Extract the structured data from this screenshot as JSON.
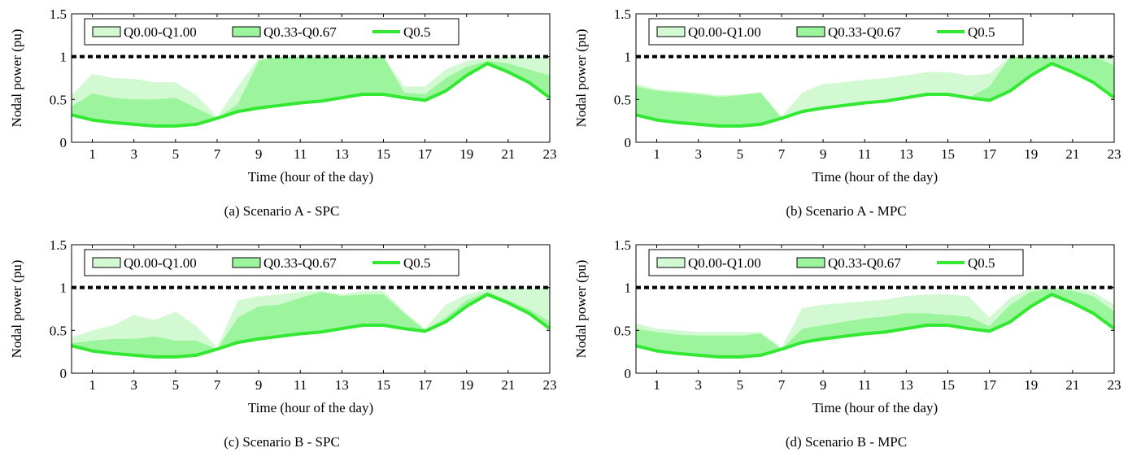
{
  "figure": {
    "legend": {
      "outer": "Q0.00-Q1.00",
      "inner": "Q0.33-Q0.67",
      "median": "Q0.5"
    },
    "colors": {
      "outer": "#d2f9d2",
      "inner": "#9cf59c",
      "median": "#33e833",
      "limit": "#000000",
      "grid_text": "#000000"
    }
  },
  "chart_data": [
    {
      "id": "a",
      "type": "area",
      "caption": "(a) Scenario A - SPC",
      "xlabel": "Time (hour of the day)",
      "ylabel": "Nodal power (pu)",
      "xlim": [
        0,
        23
      ],
      "ylim": [
        0,
        1.5
      ],
      "xticks": [
        1,
        3,
        5,
        7,
        9,
        11,
        13,
        15,
        17,
        19,
        21,
        23
      ],
      "yticks": [
        0,
        0.5,
        1,
        1.5
      ],
      "ytick_labels": [
        "0",
        "0.5",
        "1",
        "1.5"
      ],
      "limit_line": 1.0,
      "legend_position": "top-left",
      "grid": false,
      "x": [
        0,
        1,
        2,
        3,
        4,
        5,
        6,
        7,
        8,
        9,
        10,
        11,
        12,
        13,
        14,
        15,
        16,
        17,
        18,
        19,
        20,
        21,
        22,
        23
      ],
      "series": [
        {
          "name": "Q0.00-Q1.00",
          "lower": [
            0.32,
            0.26,
            0.23,
            0.21,
            0.19,
            0.19,
            0.21,
            0.28,
            0.36,
            0.4,
            0.43,
            0.46,
            0.48,
            0.52,
            0.56,
            0.56,
            0.52,
            0.49,
            0.6,
            0.78,
            0.92,
            0.82,
            0.7,
            0.52
          ],
          "upper": [
            0.55,
            0.8,
            0.75,
            0.74,
            0.7,
            0.7,
            0.55,
            0.3,
            0.65,
            0.98,
            1.0,
            1.0,
            1.0,
            1.0,
            1.0,
            1.0,
            0.65,
            0.65,
            0.85,
            0.95,
            0.98,
            1.0,
            1.0,
            1.0
          ]
        },
        {
          "name": "Q0.33-Q0.67",
          "lower": [
            0.32,
            0.26,
            0.23,
            0.21,
            0.19,
            0.19,
            0.21,
            0.28,
            0.36,
            0.4,
            0.43,
            0.46,
            0.48,
            0.52,
            0.56,
            0.56,
            0.52,
            0.49,
            0.6,
            0.78,
            0.92,
            0.82,
            0.7,
            0.52
          ],
          "upper": [
            0.42,
            0.57,
            0.52,
            0.5,
            0.5,
            0.52,
            0.4,
            0.28,
            0.45,
            0.95,
            1.0,
            1.0,
            1.0,
            1.0,
            1.0,
            1.0,
            0.58,
            0.56,
            0.75,
            0.88,
            0.95,
            0.92,
            0.85,
            0.78
          ]
        },
        {
          "name": "Q0.5",
          "values": [
            0.32,
            0.26,
            0.23,
            0.21,
            0.19,
            0.19,
            0.21,
            0.28,
            0.36,
            0.4,
            0.43,
            0.46,
            0.48,
            0.52,
            0.56,
            0.56,
            0.52,
            0.49,
            0.6,
            0.78,
            0.92,
            0.82,
            0.7,
            0.52
          ]
        }
      ]
    },
    {
      "id": "b",
      "type": "area",
      "caption": "(b) Scenario A - MPC",
      "xlabel": "Time (hour of the day)",
      "ylabel": "Nodal power (pu)",
      "xlim": [
        0,
        23
      ],
      "ylim": [
        0,
        1.5
      ],
      "xticks": [
        1,
        3,
        5,
        7,
        9,
        11,
        13,
        15,
        17,
        19,
        21,
        23
      ],
      "yticks": [
        0,
        0.5,
        1,
        1.5
      ],
      "ytick_labels": [
        "0",
        "0.5",
        "1",
        "1.5"
      ],
      "limit_line": 1.0,
      "legend_position": "top-left",
      "grid": false,
      "x": [
        0,
        1,
        2,
        3,
        4,
        5,
        6,
        7,
        8,
        9,
        10,
        11,
        12,
        13,
        14,
        15,
        16,
        17,
        18,
        19,
        20,
        21,
        22,
        23
      ],
      "series": [
        {
          "name": "Q0.00-Q1.00",
          "lower": [
            0.32,
            0.26,
            0.23,
            0.21,
            0.19,
            0.19,
            0.21,
            0.28,
            0.36,
            0.4,
            0.43,
            0.46,
            0.48,
            0.52,
            0.56,
            0.56,
            0.52,
            0.49,
            0.6,
            0.78,
            0.92,
            0.82,
            0.7,
            0.52
          ],
          "upper": [
            0.68,
            0.62,
            0.6,
            0.58,
            0.55,
            0.56,
            0.58,
            0.3,
            0.58,
            0.68,
            0.7,
            0.73,
            0.75,
            0.78,
            0.82,
            0.82,
            0.78,
            0.8,
            1.0,
            1.0,
            1.0,
            1.0,
            1.0,
            1.0
          ]
        },
        {
          "name": "Q0.33-Q0.67",
          "lower": [
            0.32,
            0.26,
            0.23,
            0.21,
            0.19,
            0.19,
            0.21,
            0.28,
            0.36,
            0.4,
            0.43,
            0.46,
            0.48,
            0.52,
            0.56,
            0.56,
            0.52,
            0.49,
            0.6,
            0.78,
            0.92,
            0.82,
            0.7,
            0.52
          ],
          "upper": [
            0.65,
            0.6,
            0.58,
            0.56,
            0.53,
            0.55,
            0.58,
            0.28,
            0.36,
            0.4,
            0.43,
            0.46,
            0.48,
            0.52,
            0.56,
            0.56,
            0.52,
            0.65,
            1.0,
            1.0,
            1.0,
            1.0,
            1.0,
            0.9
          ]
        },
        {
          "name": "Q0.5",
          "values": [
            0.32,
            0.26,
            0.23,
            0.21,
            0.19,
            0.19,
            0.21,
            0.28,
            0.36,
            0.4,
            0.43,
            0.46,
            0.48,
            0.52,
            0.56,
            0.56,
            0.52,
            0.49,
            0.6,
            0.78,
            0.92,
            0.82,
            0.7,
            0.52
          ]
        }
      ]
    },
    {
      "id": "c",
      "type": "area",
      "caption": "(c) Scenario B - SPC",
      "xlabel": "Time (hour of the day)",
      "ylabel": "Nodal power (pu)",
      "xlim": [
        0,
        23
      ],
      "ylim": [
        0,
        1.5
      ],
      "xticks": [
        1,
        3,
        5,
        7,
        9,
        11,
        13,
        15,
        17,
        19,
        21,
        23
      ],
      "yticks": [
        0,
        0.5,
        1,
        1.5
      ],
      "ytick_labels": [
        "0",
        "0.5",
        "1",
        "1.5"
      ],
      "limit_line": 1.0,
      "legend_position": "top-left",
      "grid": false,
      "x": [
        0,
        1,
        2,
        3,
        4,
        5,
        6,
        7,
        8,
        9,
        10,
        11,
        12,
        13,
        14,
        15,
        16,
        17,
        18,
        19,
        20,
        21,
        22,
        23
      ],
      "series": [
        {
          "name": "Q0.00-Q1.00",
          "lower": [
            0.32,
            0.26,
            0.23,
            0.21,
            0.19,
            0.19,
            0.21,
            0.28,
            0.36,
            0.4,
            0.43,
            0.46,
            0.48,
            0.52,
            0.56,
            0.56,
            0.52,
            0.49,
            0.6,
            0.78,
            0.92,
            0.82,
            0.7,
            0.52
          ],
          "upper": [
            0.42,
            0.5,
            0.56,
            0.68,
            0.62,
            0.72,
            0.55,
            0.3,
            0.85,
            0.9,
            0.92,
            0.95,
            0.96,
            0.92,
            0.96,
            0.96,
            0.72,
            0.52,
            0.8,
            0.92,
            0.98,
            1.0,
            1.0,
            1.0
          ]
        },
        {
          "name": "Q0.33-Q0.67",
          "lower": [
            0.32,
            0.26,
            0.23,
            0.21,
            0.19,
            0.19,
            0.21,
            0.28,
            0.36,
            0.4,
            0.43,
            0.46,
            0.48,
            0.52,
            0.56,
            0.56,
            0.52,
            0.49,
            0.6,
            0.78,
            0.92,
            0.82,
            0.7,
            0.52
          ],
          "upper": [
            0.35,
            0.38,
            0.4,
            0.4,
            0.43,
            0.38,
            0.38,
            0.28,
            0.65,
            0.78,
            0.8,
            0.88,
            0.95,
            0.9,
            0.92,
            0.92,
            0.7,
            0.5,
            0.65,
            0.85,
            0.95,
            0.85,
            0.75,
            0.6
          ]
        },
        {
          "name": "Q0.5",
          "values": [
            0.32,
            0.26,
            0.23,
            0.21,
            0.19,
            0.19,
            0.21,
            0.28,
            0.36,
            0.4,
            0.43,
            0.46,
            0.48,
            0.52,
            0.56,
            0.56,
            0.52,
            0.49,
            0.6,
            0.78,
            0.92,
            0.82,
            0.7,
            0.52
          ]
        }
      ]
    },
    {
      "id": "d",
      "type": "area",
      "caption": "(d) Scenario B - MPC",
      "xlabel": "Time (hour of the day)",
      "ylabel": "Nodal power (pu)",
      "xlim": [
        0,
        23
      ],
      "ylim": [
        0,
        1.5
      ],
      "xticks": [
        1,
        3,
        5,
        7,
        9,
        11,
        13,
        15,
        17,
        19,
        21,
        23
      ],
      "yticks": [
        0,
        0.5,
        1,
        1.5
      ],
      "ytick_labels": [
        "0",
        "0.5",
        "1",
        "1.5"
      ],
      "limit_line": 1.0,
      "legend_position": "top-left",
      "grid": false,
      "x": [
        0,
        1,
        2,
        3,
        4,
        5,
        6,
        7,
        8,
        9,
        10,
        11,
        12,
        13,
        14,
        15,
        16,
        17,
        18,
        19,
        20,
        21,
        22,
        23
      ],
      "series": [
        {
          "name": "Q0.00-Q1.00",
          "lower": [
            0.32,
            0.26,
            0.23,
            0.21,
            0.19,
            0.19,
            0.21,
            0.28,
            0.36,
            0.4,
            0.43,
            0.46,
            0.48,
            0.52,
            0.56,
            0.56,
            0.52,
            0.49,
            0.6,
            0.78,
            0.92,
            0.82,
            0.7,
            0.52
          ],
          "upper": [
            0.58,
            0.52,
            0.5,
            0.48,
            0.48,
            0.48,
            0.48,
            0.3,
            0.76,
            0.8,
            0.82,
            0.84,
            0.86,
            0.9,
            0.92,
            0.92,
            0.9,
            0.65,
            0.88,
            1.0,
            1.0,
            1.0,
            0.95,
            0.8
          ]
        },
        {
          "name": "Q0.33-Q0.67",
          "lower": [
            0.32,
            0.26,
            0.23,
            0.21,
            0.19,
            0.19,
            0.21,
            0.28,
            0.36,
            0.4,
            0.43,
            0.46,
            0.48,
            0.52,
            0.56,
            0.56,
            0.52,
            0.49,
            0.6,
            0.78,
            0.92,
            0.82,
            0.7,
            0.52
          ],
          "upper": [
            0.52,
            0.48,
            0.45,
            0.44,
            0.44,
            0.44,
            0.46,
            0.28,
            0.52,
            0.56,
            0.6,
            0.64,
            0.66,
            0.7,
            0.7,
            0.68,
            0.66,
            0.55,
            0.8,
            0.95,
            0.98,
            0.96,
            0.9,
            0.72
          ]
        },
        {
          "name": "Q0.5",
          "values": [
            0.32,
            0.26,
            0.23,
            0.21,
            0.19,
            0.19,
            0.21,
            0.28,
            0.36,
            0.4,
            0.43,
            0.46,
            0.48,
            0.52,
            0.56,
            0.56,
            0.52,
            0.49,
            0.6,
            0.78,
            0.92,
            0.82,
            0.7,
            0.52
          ]
        }
      ]
    }
  ]
}
